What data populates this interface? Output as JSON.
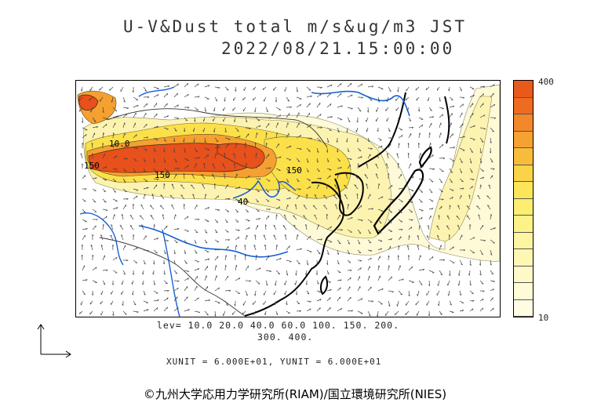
{
  "header": {
    "title": "U-V&Dust total m/s&ug/m3 JST",
    "timestamp": "2022/08/21.15:00:00"
  },
  "colorbar": {
    "max_label": "400",
    "min_label": "10",
    "colors": [
      "#e85a1c",
      "#ee6c20",
      "#f2882a",
      "#f5a232",
      "#f8bc3c",
      "#fad448",
      "#fbe65a",
      "#fcee70",
      "#fdf288",
      "#fef5a0",
      "#fef7b4",
      "#fef9c6",
      "#fffbd6",
      "#fffce4"
    ]
  },
  "map": {
    "contour_labels": [
      "10.0",
      "150",
      "150",
      "150",
      "40"
    ],
    "colors": {
      "high": "#e8501c",
      "mid": "#f5a030",
      "low": "#fbe04a",
      "faint": "#fdf3b0",
      "palest": "#fefad8",
      "coast": "#000000",
      "river": "#1560d8",
      "border": "#333333"
    }
  },
  "levels": {
    "line1": "lev= 10.0 20.0 40.0 60.0 100. 150. 200.",
    "line2": "300. 400."
  },
  "units": "XUNIT = 6.000E+01, YUNIT = 6.000E+01",
  "copyright": "©九州大学応用力学研究所(RIAM)/国立環境研究所(NIES)"
}
